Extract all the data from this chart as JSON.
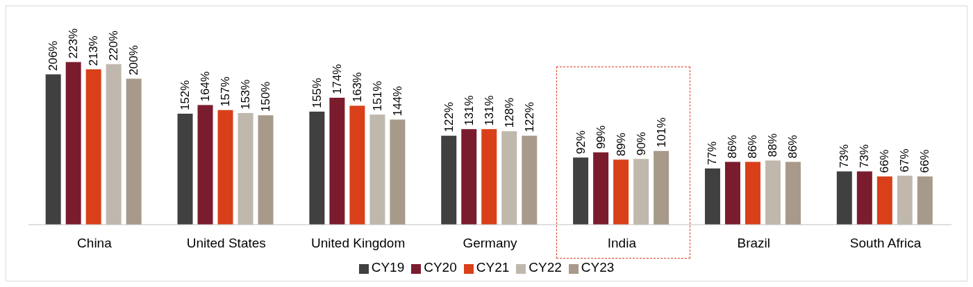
{
  "chart_data": {
    "type": "bar",
    "categories": [
      "China",
      "United States",
      "United Kingdom",
      "Germany",
      "India",
      "Brazil",
      "South Africa"
    ],
    "series": [
      {
        "name": "CY19",
        "color": "#404040",
        "values": [
          206,
          152,
          155,
          122,
          92,
          77,
          73
        ],
        "value_labels": [
          "206%",
          "152%",
          "155%",
          "122%",
          "92%",
          "77%",
          "73%"
        ]
      },
      {
        "name": "CY20",
        "color": "#7b1c2e",
        "values": [
          223,
          164,
          174,
          131,
          99,
          86,
          73
        ],
        "value_labels": [
          "223%",
          "164%",
          "174%",
          "131%",
          "99%",
          "86%",
          "73%"
        ]
      },
      {
        "name": "CY21",
        "color": "#d9401a",
        "values": [
          213,
          157,
          163,
          131,
          89,
          86,
          66
        ],
        "value_labels": [
          "213%",
          "157%",
          "163%",
          "131%",
          "89%",
          "86%",
          "66%"
        ]
      },
      {
        "name": "CY22",
        "color": "#c0b8ad",
        "values": [
          220,
          153,
          151,
          128,
          90,
          88,
          67
        ],
        "value_labels": [
          "220%",
          "153%",
          "151%",
          "128%",
          "90%",
          "88%",
          "67%"
        ]
      },
      {
        "name": "CY23",
        "color": "#a89a8a",
        "values": [
          200,
          150,
          144,
          122,
          101,
          86,
          66
        ],
        "value_labels": [
          "200%",
          "150%",
          "144%",
          "122%",
          "101%",
          "86%",
          "66%"
        ]
      }
    ],
    "legend": "bottom",
    "grid": false
  }
}
